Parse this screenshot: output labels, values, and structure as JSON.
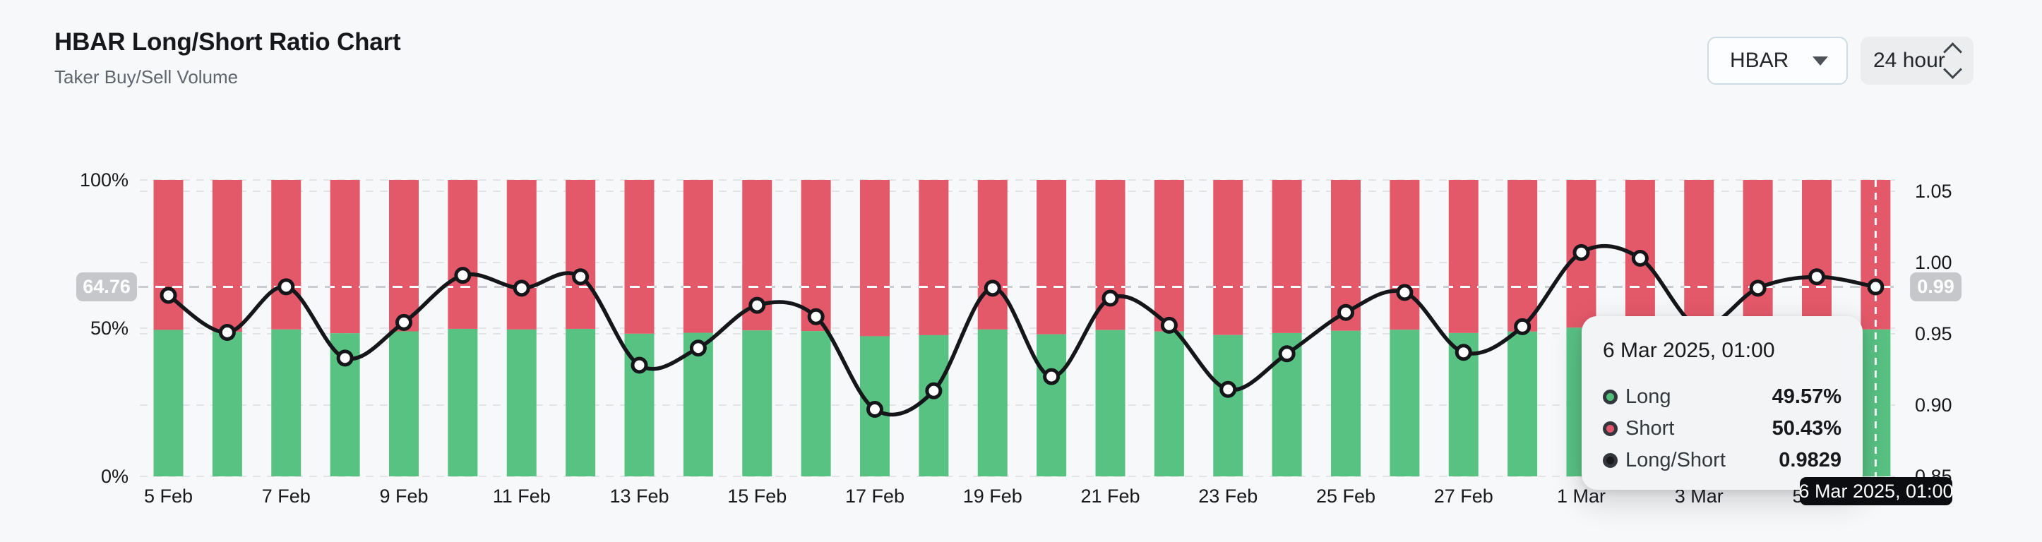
{
  "header": {
    "title": "HBAR Long/Short Ratio Chart",
    "subtitle": "Taker Buy/Sell Volume"
  },
  "controls": {
    "symbol_select": {
      "value": "HBAR"
    },
    "interval_select": {
      "value": "24 hour"
    }
  },
  "chart_data": {
    "type": "bar+line",
    "stacked": true,
    "categories": [
      "5 Feb",
      "6 Feb",
      "7 Feb",
      "8 Feb",
      "9 Feb",
      "10 Feb",
      "11 Feb",
      "12 Feb",
      "13 Feb",
      "14 Feb",
      "15 Feb",
      "16 Feb",
      "17 Feb",
      "18 Feb",
      "19 Feb",
      "20 Feb",
      "21 Feb",
      "22 Feb",
      "23 Feb",
      "24 Feb",
      "25 Feb",
      "26 Feb",
      "27 Feb",
      "28 Feb",
      "1 Mar",
      "2 Mar",
      "3 Mar",
      "4 Mar",
      "5 Mar",
      "6 Mar"
    ],
    "x_tick_labels": [
      "5 Feb",
      "7 Feb",
      "9 Feb",
      "11 Feb",
      "13 Feb",
      "15 Feb",
      "17 Feb",
      "19 Feb",
      "21 Feb",
      "23 Feb",
      "25 Feb",
      "27 Feb",
      "1 Mar",
      "3 Mar",
      "5 Mar"
    ],
    "series": [
      {
        "name": "Long",
        "type": "bar",
        "stack": "volume",
        "unit": "%",
        "color": "#58c283",
        "values": [
          49.42,
          48.74,
          49.57,
          48.27,
          48.93,
          49.77,
          49.55,
          49.75,
          48.13,
          48.45,
          49.24,
          49.03,
          47.28,
          47.64,
          49.55,
          47.92,
          49.37,
          48.88,
          47.67,
          48.35,
          49.11,
          49.47,
          48.37,
          48.85,
          50.17,
          50.07,
          48.85,
          49.55,
          49.75,
          49.57
        ]
      },
      {
        "name": "Short",
        "type": "bar",
        "stack": "volume",
        "unit": "%",
        "color": "#e4596a",
        "values": [
          50.58,
          51.26,
          50.43,
          51.73,
          51.07,
          50.23,
          50.45,
          50.25,
          51.87,
          51.55,
          50.76,
          50.97,
          52.72,
          52.36,
          50.45,
          52.08,
          50.63,
          51.12,
          52.33,
          51.65,
          50.89,
          50.53,
          51.63,
          51.15,
          49.83,
          49.93,
          51.15,
          50.45,
          50.25,
          50.43
        ]
      },
      {
        "name": "Long/Short",
        "type": "line",
        "axis": "right",
        "color": "#14161a",
        "values": [
          0.977,
          0.951,
          0.983,
          0.933,
          0.958,
          0.991,
          0.982,
          0.99,
          0.928,
          0.94,
          0.97,
          0.962,
          0.897,
          0.91,
          0.982,
          0.92,
          0.975,
          0.956,
          0.911,
          0.936,
          0.965,
          0.979,
          0.937,
          0.955,
          1.007,
          1.003,
          0.955,
          0.982,
          0.99,
          0.9829
        ]
      }
    ],
    "left_axis": {
      "ticks": [
        "100%",
        "50%",
        "0%"
      ],
      "tick_values": [
        100,
        50,
        0
      ],
      "range": [
        0,
        100
      ]
    },
    "right_axis": {
      "ticks": [
        "1.05",
        "1.00",
        "0.95",
        "0.90",
        "0.85"
      ],
      "tick_values": [
        1.05,
        1.0,
        0.95,
        0.9,
        0.85
      ],
      "range": [
        0.85,
        1.05
      ]
    },
    "grid": "horizontal-dashed",
    "legend_position": "none",
    "current_value": {
      "ratio": 0.9829,
      "left_badge": "64.76",
      "right_badge": "0.99"
    },
    "crosshair": {
      "index": 29,
      "date_badge": "6 Mar 2025, 01:00"
    }
  },
  "tooltip": {
    "title": "6 Mar 2025, 01:00",
    "rows": [
      {
        "label": "Long",
        "value": "49.57%",
        "color": "#4fbf7a"
      },
      {
        "label": "Short",
        "value": "50.43%",
        "color": "#e2556a"
      },
      {
        "label": "Long/Short",
        "value": "0.9829",
        "color": "#17191d"
      }
    ]
  }
}
